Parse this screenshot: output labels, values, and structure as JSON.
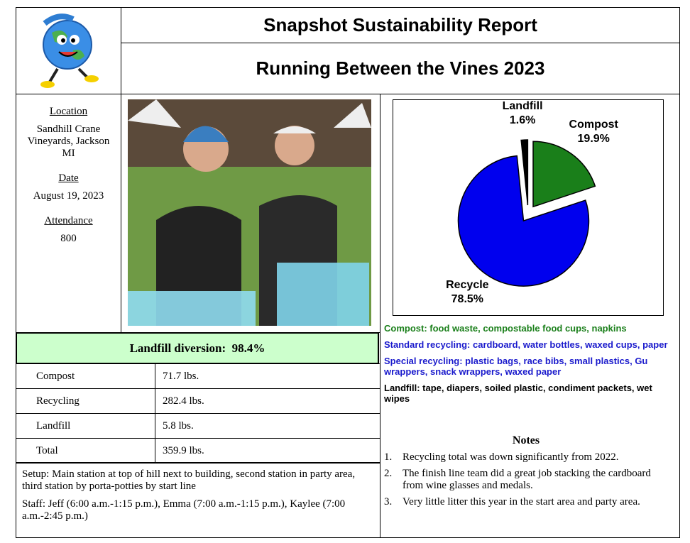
{
  "header": {
    "title": "Snapshot Sustainability Report",
    "subtitle": "Running Between the Vines 2023"
  },
  "info": [
    {
      "label": "Location",
      "value": "Sandhill Crane Vineyards, Jackson MI"
    },
    {
      "label": "Date",
      "value": "August 19, 2023"
    },
    {
      "label": "Attendance",
      "value": "800"
    }
  ],
  "diversion": {
    "label": "Landfill diversion:",
    "value": "98.4%"
  },
  "table": {
    "rows": [
      [
        "Compost",
        "71.7 lbs."
      ],
      [
        "Recycling",
        "282.4 lbs."
      ],
      [
        "Landfill",
        "5.8 lbs."
      ],
      [
        "Total",
        "359.9 lbs."
      ]
    ]
  },
  "setup": "Setup: Main station at top of hill next to building, second station in party area, third station by porta-potties by start line",
  "staff": "Staff: Jeff (6:00 a.m.-1:15 p.m.), Emma (7:00 a.m.-1:15 p.m.), Kaylee (7:00 a.m.-2:45 p.m.)",
  "chart_data": {
    "type": "pie",
    "categories": [
      "Compost",
      "Recycle",
      "Landfill"
    ],
    "values": [
      19.9,
      78.5,
      1.6
    ],
    "value_labels": [
      "19.9%",
      "78.5%",
      "1.6%"
    ],
    "colors": [
      "#1a7f1a",
      "#0000ee",
      "#000000"
    ]
  },
  "streams": [
    {
      "text": "Compost: food waste, compostable food cups, napkins",
      "color": "#1a7f1a"
    },
    {
      "text": "Standard recycling: cardboard, water bottles, waxed cups, paper",
      "color": "#1a1acc"
    },
    {
      "text": "Special recycling: plastic bags, race bibs, small plastics, Gu wrappers, snack wrappers, waxed paper",
      "color": "#1a1acc"
    },
    {
      "text": "Landfill: tape, diapers, soiled plastic, condiment packets, wet wipes",
      "color": "#000000"
    }
  ],
  "notes": {
    "title": "Notes",
    "items": [
      {
        "number": "1.",
        "text": "Recycling total was down significantly from 2022."
      },
      {
        "number": "2.",
        "text": "The finish line team did a great job stacking the cardboard from wine glasses and medals."
      },
      {
        "number": "3.",
        "text": "Very little litter this year in the start area and party area."
      }
    ]
  }
}
